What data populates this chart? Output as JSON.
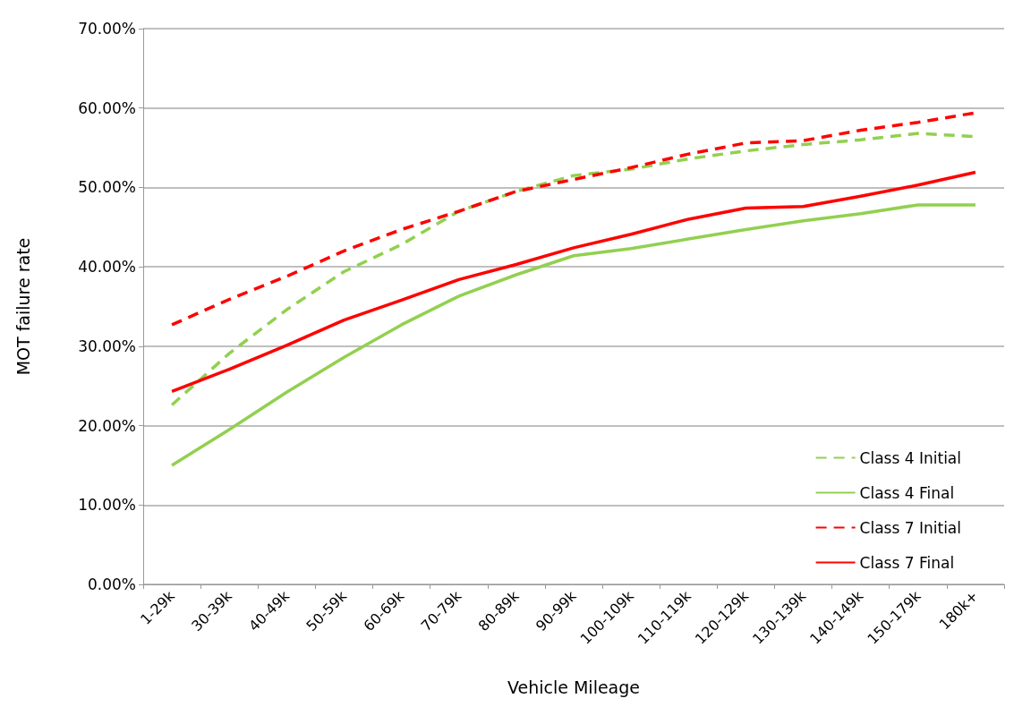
{
  "chart_data": {
    "type": "line",
    "xlabel": "Vehicle Mileage",
    "ylabel": "MOT failure rate",
    "categories": [
      "1-29k",
      "30-39k",
      "40-49k",
      "50-59k",
      "60-69k",
      "70-79k",
      "80-89k",
      "90-99k",
      "100-109k",
      "110-119k",
      "120-129k",
      "130-139k",
      "140-149k",
      "150-179k",
      "180k+"
    ],
    "series": [
      {
        "name": "Class 4 Initial",
        "color": "#92d050",
        "line_style": "dashed",
        "values": [
          22.6,
          29.1,
          34.6,
          39.4,
          42.8,
          47.0,
          49.5,
          51.5,
          52.3,
          53.6,
          54.6,
          55.4,
          56.0,
          56.8,
          56.4
        ]
      },
      {
        "name": "Class 4 Final",
        "color": "#92d050",
        "line_style": "solid",
        "values": [
          15.0,
          19.5,
          24.2,
          28.6,
          32.7,
          36.3,
          39.0,
          41.4,
          42.3,
          43.5,
          44.7,
          45.8,
          46.7,
          47.8,
          47.8
        ]
      },
      {
        "name": "Class 7 Initial",
        "color": "#ff0000",
        "line_style": "dashed",
        "values": [
          32.7,
          35.9,
          38.8,
          42.0,
          44.7,
          47.0,
          49.5,
          51.0,
          52.5,
          54.2,
          55.6,
          55.9,
          57.2,
          58.2,
          59.4
        ]
      },
      {
        "name": "Class 7 Final",
        "color": "#ff0000",
        "line_style": "solid",
        "values": [
          24.3,
          27.1,
          30.1,
          33.3,
          35.8,
          38.4,
          40.3,
          42.4,
          44.1,
          46.0,
          47.4,
          47.6,
          48.9,
          50.3,
          51.9
        ]
      }
    ],
    "ylim": [
      0,
      70
    ],
    "yticks": [
      {
        "value": 0,
        "label": "0.00%"
      },
      {
        "value": 10,
        "label": "10.00%"
      },
      {
        "value": 20,
        "label": "20.00%"
      },
      {
        "value": 30,
        "label": "30.00%"
      },
      {
        "value": 40,
        "label": "40.00%"
      },
      {
        "value": 50,
        "label": "50.00%"
      },
      {
        "value": 60,
        "label": "60.00%"
      },
      {
        "value": 70,
        "label": "70.00%"
      }
    ],
    "grid": "y",
    "legend": "bottom right",
    "marker": "none"
  }
}
